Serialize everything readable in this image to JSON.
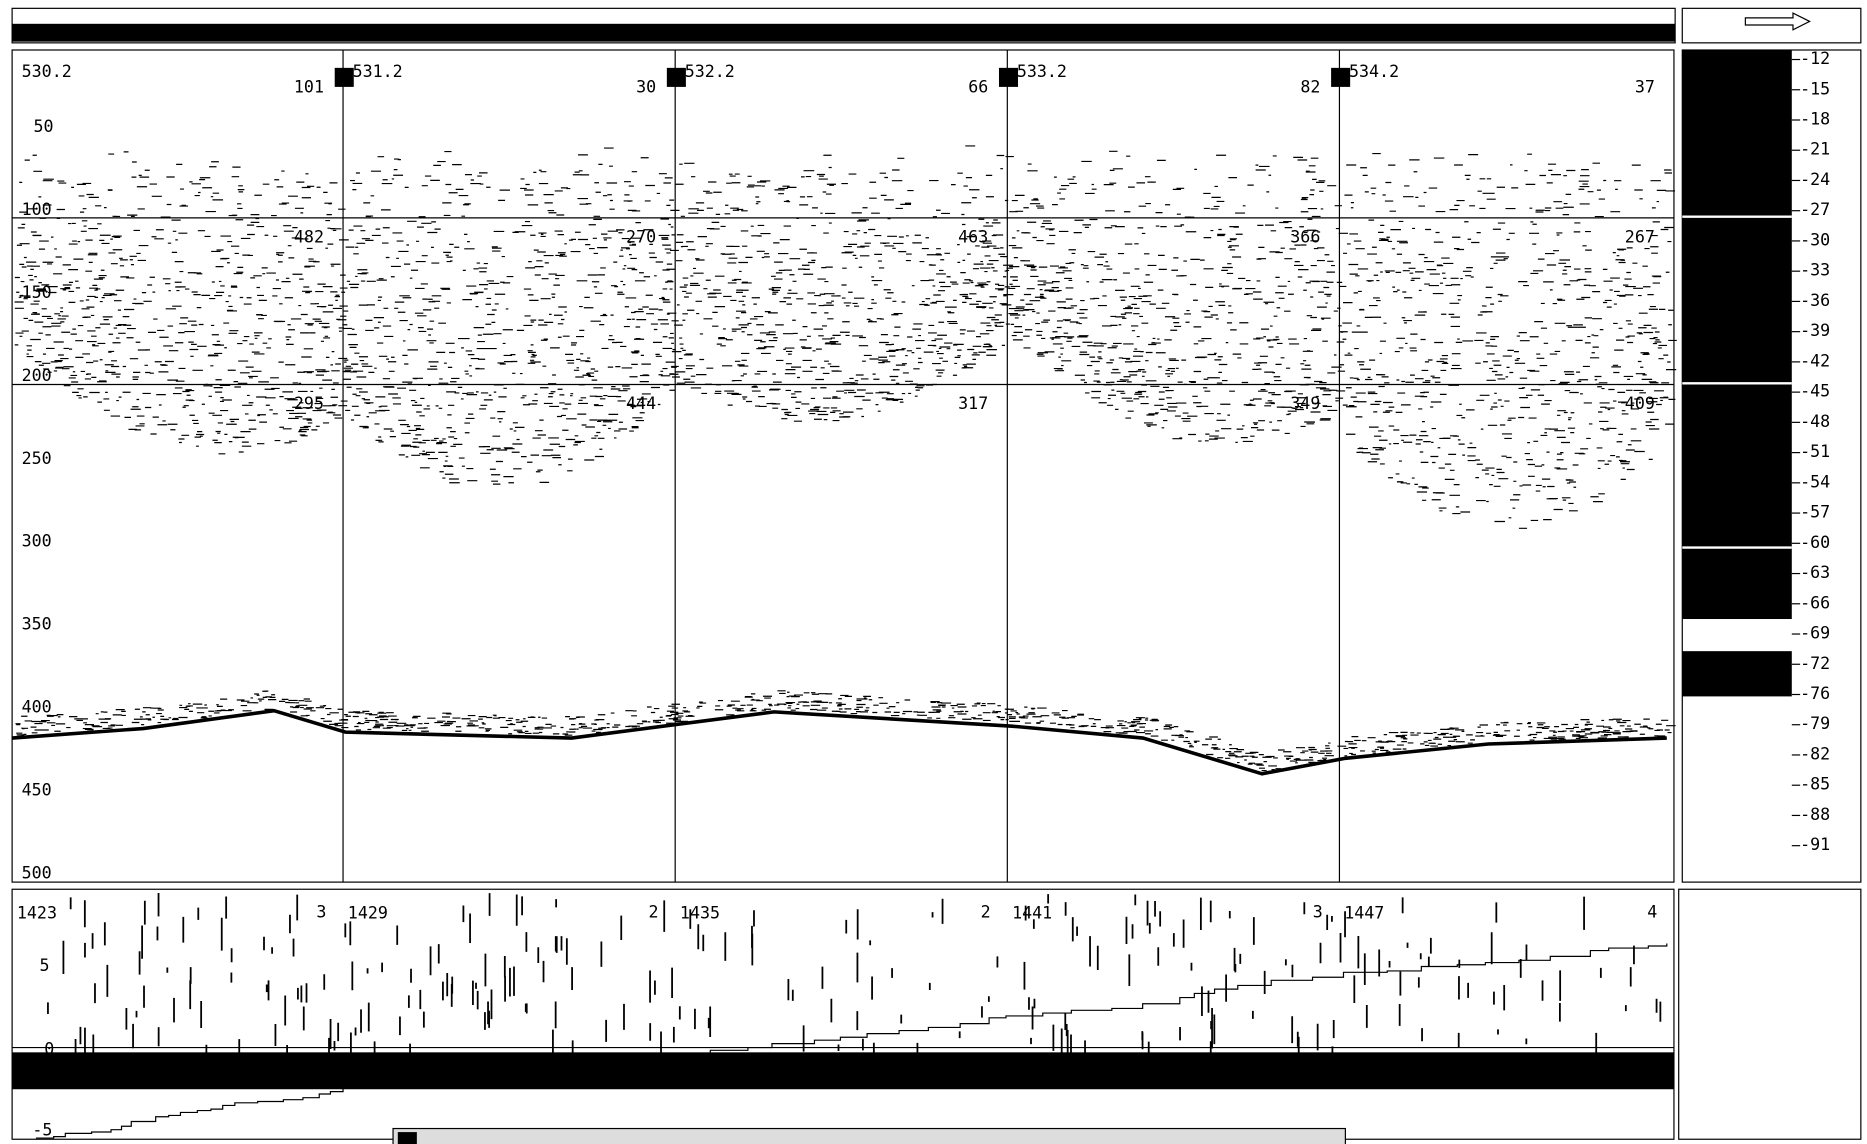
{
  "top_panel": {
    "segments": [
      {
        "distance": "530.2",
        "count": "101",
        "layer1": "482",
        "layer2": "295"
      },
      {
        "distance": "531.2",
        "count": "30",
        "layer1": "270",
        "layer2": "444"
      },
      {
        "distance": "532.2",
        "count": "66",
        "layer1": "463",
        "layer2": "317"
      },
      {
        "distance": "533.2",
        "count": "82",
        "layer1": "366",
        "layer2": "349"
      },
      {
        "distance": "534.2",
        "count": "37",
        "layer1": "267",
        "layer2": "409"
      }
    ],
    "depth_ticks": [
      "50",
      "100",
      "150",
      "200",
      "250",
      "300",
      "350",
      "400",
      "450",
      "500"
    ]
  },
  "color_scale": [
    "-12",
    "-15",
    "-18",
    "-21",
    "-24",
    "-27",
    "-30",
    "-33",
    "-36",
    "-39",
    "-42",
    "-45",
    "-48",
    "-51",
    "-54",
    "-57",
    "-60",
    "-63",
    "-66",
    "-69",
    "-72",
    "-76",
    "-79",
    "-82",
    "-85",
    "-88",
    "-91"
  ],
  "bottom_panel": {
    "segments": [
      {
        "label": "1423",
        "count": "3"
      },
      {
        "label": "1429",
        "count": "2"
      },
      {
        "label": "1435",
        "count": "2"
      },
      {
        "label": "1441",
        "count": "3"
      },
      {
        "label": "1447",
        "count": "4"
      }
    ],
    "ticks": [
      "5",
      "0",
      "-5"
    ]
  }
}
